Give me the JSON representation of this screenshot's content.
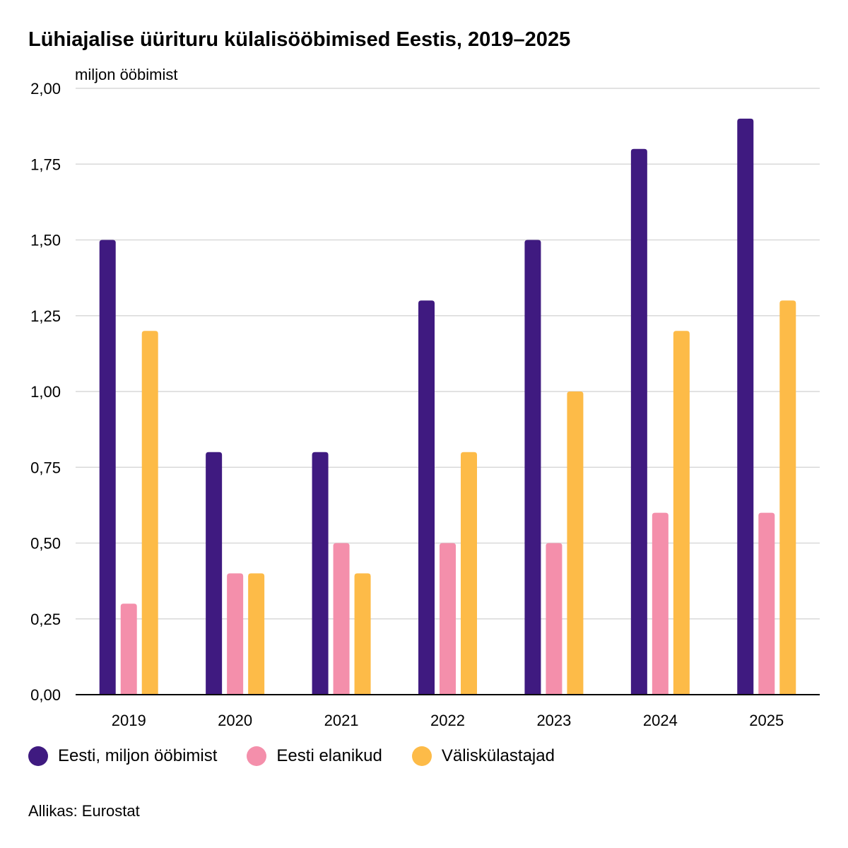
{
  "chart_data": {
    "type": "bar",
    "title": "Lühiajalise üürituru külalisööbimised Eestis, 2019–2025",
    "ylabel": "miljon ööbimist",
    "xlabel": "",
    "categories": [
      "2019",
      "2020",
      "2021",
      "2022",
      "2023",
      "2024",
      "2025"
    ],
    "ylim": [
      0,
      2
    ],
    "yticks": [
      "0,00",
      "0,25",
      "0,50",
      "0,75",
      "1,00",
      "1,25",
      "1,50",
      "1,75",
      "2,00"
    ],
    "grid": true,
    "legend_position": "bottom-left",
    "series": [
      {
        "name": "Eesti, miljon ööbimist",
        "color": "#3f1a80",
        "values": [
          1.5,
          0.8,
          0.8,
          1.3,
          1.5,
          1.8,
          1.9
        ]
      },
      {
        "name": "Eesti elanikud",
        "color": "#f48fab",
        "values": [
          0.3,
          0.4,
          0.5,
          0.5,
          0.5,
          0.6,
          0.6
        ]
      },
      {
        "name": "Väliskülastajad",
        "color": "#fdbb48",
        "values": [
          1.2,
          0.4,
          0.4,
          0.8,
          1.0,
          1.2,
          1.3
        ]
      }
    ],
    "source": "Allikas: Eurostat"
  }
}
